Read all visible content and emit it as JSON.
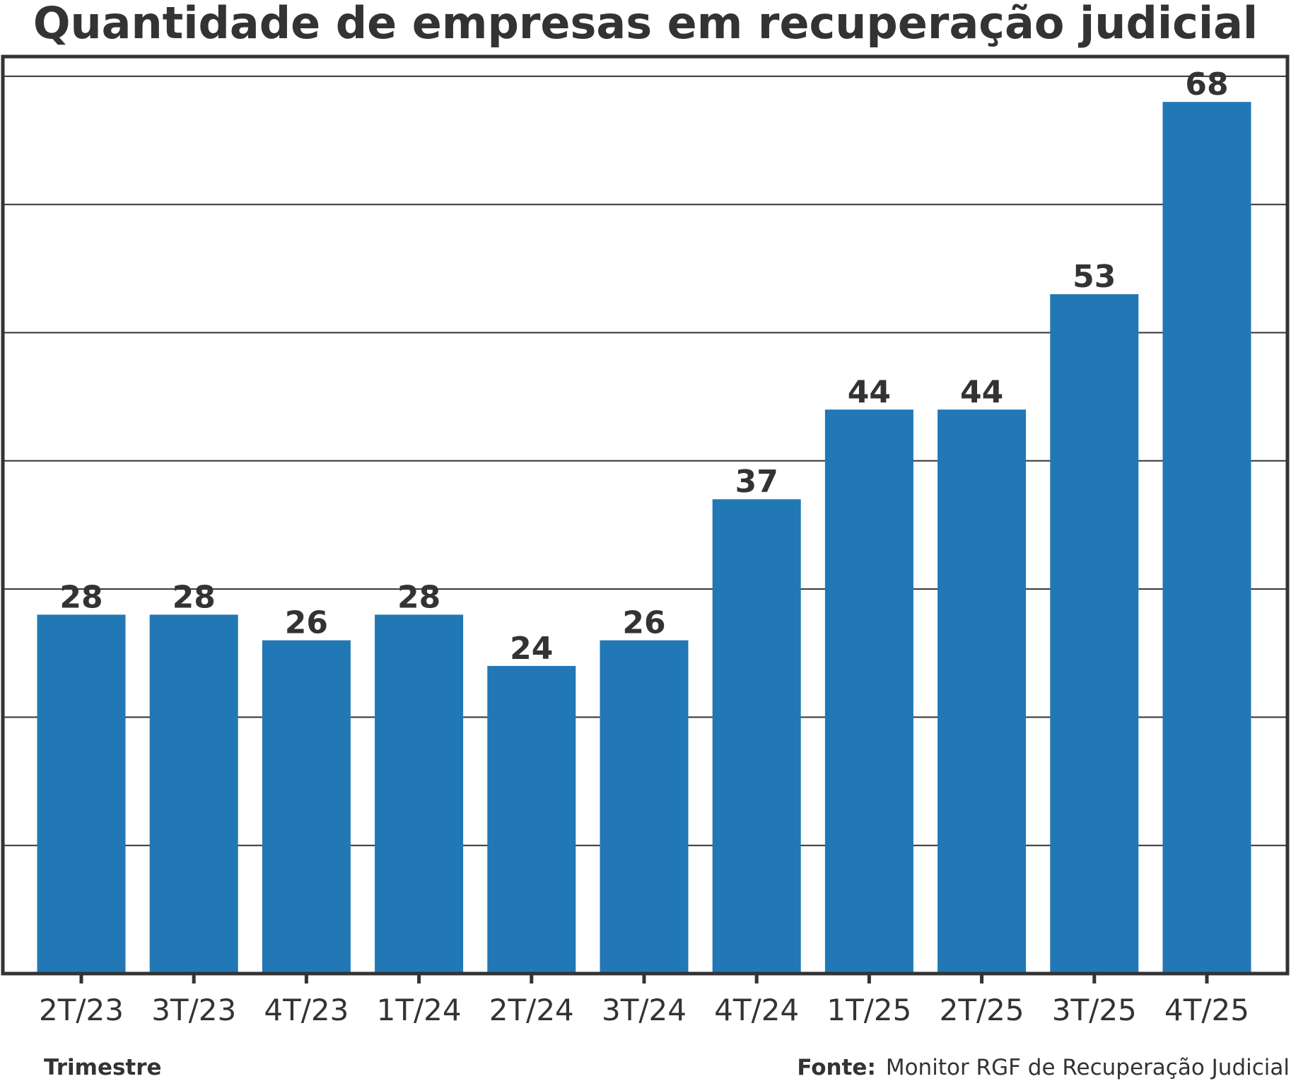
{
  "chart_data": {
    "type": "bar",
    "title": "Quantidade de empresas em recuperação judicial",
    "xlabel": "Trimestre",
    "ylabel": "",
    "categories": [
      "2T/23",
      "3T/23",
      "4T/23",
      "1T/24",
      "2T/24",
      "3T/24",
      "4T/24",
      "1T/25",
      "2T/25",
      "3T/25",
      "4T/25"
    ],
    "values": [
      28,
      28,
      26,
      28,
      24,
      26,
      37,
      44,
      44,
      53,
      68
    ],
    "ylim": [
      0,
      70
    ],
    "grid": true,
    "bar_color": "#2178b4",
    "text_color": "#333333"
  },
  "source": {
    "label": "Fonte:",
    "text": "Monitor RGF de Recuperação Judicial"
  }
}
